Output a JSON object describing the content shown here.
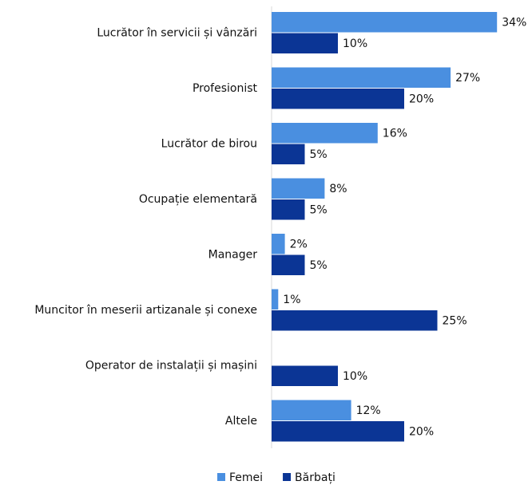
{
  "chart_data": {
    "type": "bar",
    "orientation": "horizontal",
    "categories": [
      "Lucrător în servicii și vânzări",
      "Profesionist",
      "Lucrător de birou",
      "Ocupație elementară",
      "Manager",
      "Muncitor în meserii artizanale și conexe",
      "Operator de instalații și mașini",
      "Altele"
    ],
    "series": [
      {
        "name": "Femei",
        "color": "#4a8fe0",
        "values": [
          34,
          27,
          16,
          8,
          2,
          1,
          null,
          12
        ],
        "value_labels": [
          "34%",
          "27%",
          "16%",
          "8%",
          "2%",
          "1%",
          null,
          "12%"
        ]
      },
      {
        "name": "Bărbați",
        "color": "#0b3595",
        "values": [
          10,
          20,
          5,
          5,
          5,
          25,
          10,
          20
        ],
        "value_labels": [
          "10%",
          "20%",
          "5%",
          "5%",
          "5%",
          "25%",
          "10%",
          "20%"
        ]
      }
    ],
    "legend": "bottom"
  }
}
